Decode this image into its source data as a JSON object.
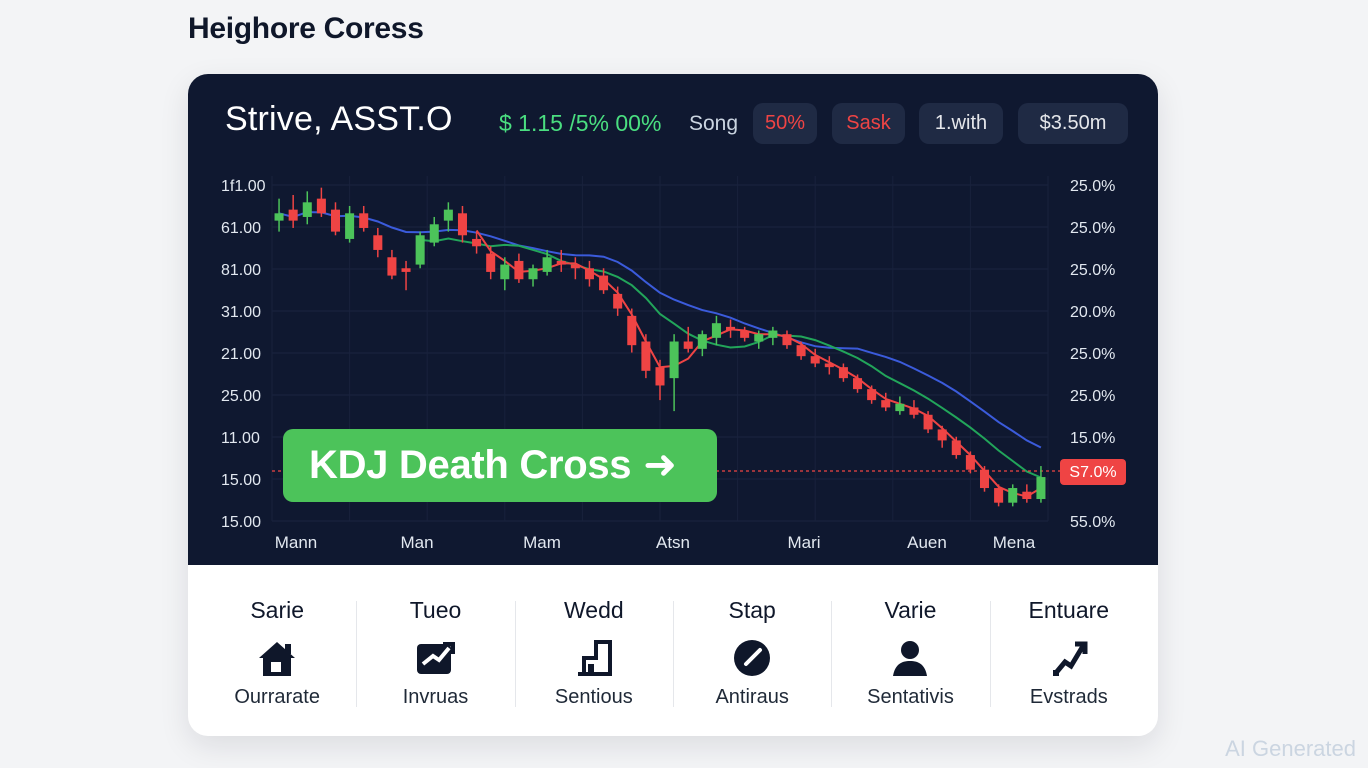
{
  "page": {
    "title": "Heighore Coress",
    "watermark": "AI Generated"
  },
  "header": {
    "ticker": "Strive, ASST.O",
    "price_change": "$ 1.15 /5% 00%",
    "status": "Song",
    "pills": [
      "50%",
      "Sask",
      "1.with",
      "$3.50m"
    ]
  },
  "signal": {
    "label": "KDJ Death Cross",
    "arrow": "➜"
  },
  "stats": [
    {
      "label": "Sarie",
      "sub": "Ourrarate",
      "icon": "house-icon"
    },
    {
      "label": "Tueo",
      "sub": "Invruas",
      "icon": "trend-card-icon"
    },
    {
      "label": "Wedd",
      "sub": "Sentious",
      "icon": "bar-chart-icon"
    },
    {
      "label": "Stap",
      "sub": "Antiraus",
      "icon": "gauge-icon"
    },
    {
      "label": "Varie",
      "sub": "Sentativis",
      "icon": "user-icon"
    },
    {
      "label": "Entuare",
      "sub": "Evstrads",
      "icon": "arrow-up-right-icon"
    }
  ],
  "colors": {
    "panel": "#0f1830",
    "bull": "#4cc35a",
    "bear": "#ef4444",
    "ma_blue": "#3b5bdb",
    "accent_green": "#4ade80"
  },
  "chart_data": {
    "type": "candlestick",
    "y_left_ticks": [
      "1f1.00",
      "61.00",
      "81.00",
      "31.00",
      "21.00",
      "25.00",
      "11.00",
      "15.00",
      "15.00"
    ],
    "y_right_ticks": [
      "25.0%",
      "25.0%",
      "25.0%",
      "20.0%",
      "25.0%",
      "25.0%",
      "15.0%",
      "",
      "55.0%"
    ],
    "x_ticks": [
      "Mann",
      "Man",
      "Mam",
      "Atsn",
      "Mari",
      "Auen",
      "Mena"
    ],
    "current_price_label": "S7.0%",
    "candles": [
      [
        14.2,
        14.8,
        13.9,
        14.4
      ],
      [
        14.5,
        14.9,
        14.0,
        14.2
      ],
      [
        14.3,
        15.0,
        14.1,
        14.7
      ],
      [
        14.8,
        15.1,
        14.3,
        14.4
      ],
      [
        14.5,
        14.7,
        13.8,
        13.9
      ],
      [
        13.7,
        14.6,
        13.6,
        14.4
      ],
      [
        14.4,
        14.6,
        13.9,
        14.0
      ],
      [
        13.8,
        14.0,
        13.2,
        13.4
      ],
      [
        13.2,
        13.4,
        12.6,
        12.7
      ],
      [
        12.9,
        13.1,
        12.3,
        12.8
      ],
      [
        13.0,
        13.9,
        12.9,
        13.8
      ],
      [
        13.6,
        14.3,
        13.5,
        14.1
      ],
      [
        14.2,
        14.7,
        13.9,
        14.5
      ],
      [
        14.4,
        14.6,
        13.6,
        13.8
      ],
      [
        13.7,
        13.9,
        13.3,
        13.5
      ],
      [
        13.3,
        13.5,
        12.6,
        12.8
      ],
      [
        12.6,
        13.2,
        12.3,
        13.0
      ],
      [
        13.1,
        13.3,
        12.5,
        12.6
      ],
      [
        12.6,
        13.0,
        12.4,
        12.9
      ],
      [
        12.8,
        13.4,
        12.7,
        13.2
      ],
      [
        13.1,
        13.4,
        12.8,
        13.0
      ],
      [
        13.0,
        13.2,
        12.6,
        12.9
      ],
      [
        12.9,
        13.1,
        12.4,
        12.6
      ],
      [
        12.7,
        12.9,
        12.2,
        12.3
      ],
      [
        12.2,
        12.4,
        11.6,
        11.8
      ],
      [
        11.6,
        11.8,
        10.6,
        10.8
      ],
      [
        10.9,
        11.1,
        9.9,
        10.1
      ],
      [
        10.2,
        10.4,
        9.3,
        9.7
      ],
      [
        9.9,
        11.1,
        9.0,
        10.9
      ],
      [
        10.9,
        11.3,
        10.6,
        10.7
      ],
      [
        10.7,
        11.2,
        10.5,
        11.1
      ],
      [
        11.0,
        11.6,
        10.8,
        11.4
      ],
      [
        11.3,
        11.5,
        11.0,
        11.2
      ],
      [
        11.2,
        11.3,
        10.9,
        11.0
      ],
      [
        10.9,
        11.2,
        10.7,
        11.1
      ],
      [
        11.0,
        11.3,
        10.8,
        11.2
      ],
      [
        11.1,
        11.2,
        10.7,
        10.8
      ],
      [
        10.8,
        10.9,
        10.4,
        10.5
      ],
      [
        10.5,
        10.7,
        10.2,
        10.3
      ],
      [
        10.3,
        10.5,
        10.0,
        10.2
      ],
      [
        10.2,
        10.3,
        9.8,
        9.9
      ],
      [
        9.9,
        10.0,
        9.5,
        9.6
      ],
      [
        9.6,
        9.7,
        9.2,
        9.3
      ],
      [
        9.3,
        9.5,
        9.0,
        9.1
      ],
      [
        9.0,
        9.4,
        8.9,
        9.2
      ],
      [
        9.1,
        9.3,
        8.8,
        8.9
      ],
      [
        8.9,
        9.0,
        8.4,
        8.5
      ],
      [
        8.5,
        8.6,
        8.0,
        8.2
      ],
      [
        8.2,
        8.3,
        7.7,
        7.8
      ],
      [
        7.8,
        7.9,
        7.3,
        7.4
      ],
      [
        7.4,
        7.5,
        6.8,
        6.9
      ],
      [
        6.9,
        7.0,
        6.4,
        6.5
      ],
      [
        6.5,
        7.0,
        6.4,
        6.9
      ],
      [
        6.8,
        7.0,
        6.5,
        6.6
      ],
      [
        6.6,
        7.5,
        6.5,
        7.2
      ]
    ]
  }
}
